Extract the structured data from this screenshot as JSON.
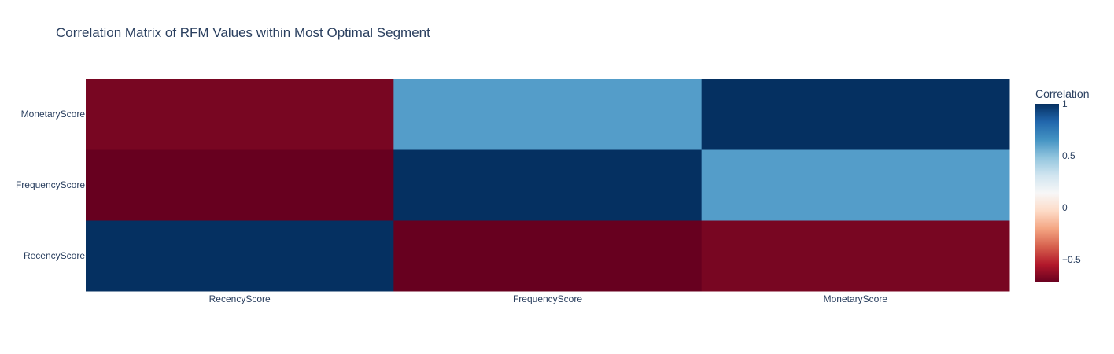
{
  "chart_data": {
    "type": "heatmap",
    "title": "Correlation Matrix of RFM Values within Most Optimal Segment",
    "x_categories": [
      "RecencyScore",
      "FrequencyScore",
      "MonetaryScore"
    ],
    "y_categories": [
      "RecencyScore",
      "FrequencyScore",
      "MonetaryScore"
    ],
    "z": [
      [
        1.0,
        -0.72,
        -0.68
      ],
      [
        -0.72,
        1.0,
        0.62
      ],
      [
        -0.68,
        0.62,
        1.0
      ]
    ],
    "colorbar": {
      "title": "Correlation",
      "range": [
        -0.72,
        1.0
      ],
      "ticks": [
        {
          "value": 1,
          "label": "1"
        },
        {
          "value": 0.5,
          "label": "0.5"
        },
        {
          "value": 0,
          "label": "0"
        },
        {
          "value": -0.5,
          "label": "−0.5"
        }
      ]
    },
    "colorscale": [
      [
        0.0,
        "#67001f"
      ],
      [
        0.1,
        "#b2182b"
      ],
      [
        0.2,
        "#d6604d"
      ],
      [
        0.3,
        "#f4a582"
      ],
      [
        0.4,
        "#fddbc7"
      ],
      [
        0.5,
        "#f7f7f7"
      ],
      [
        0.6,
        "#d1e5f0"
      ],
      [
        0.7,
        "#92c5de"
      ],
      [
        0.8,
        "#4393c3"
      ],
      [
        0.9,
        "#2166ac"
      ],
      [
        1.0,
        "#053061"
      ]
    ]
  }
}
